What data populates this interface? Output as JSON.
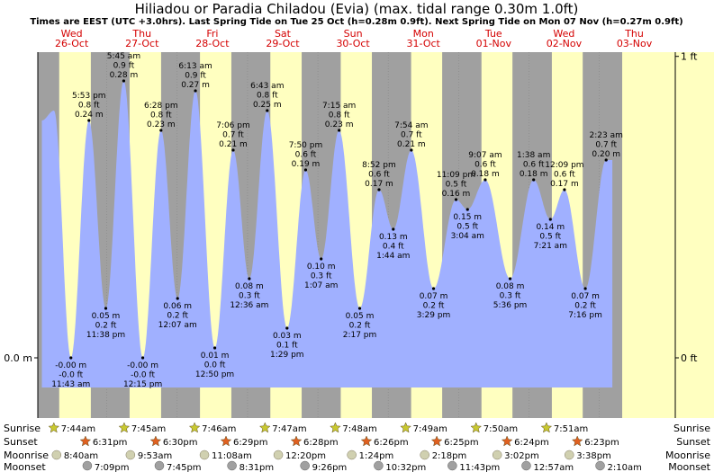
{
  "header": {
    "title": "Hiliadou or Paradia Chiladou (Evia) (max. tidal range 0.30m 1.0ft)",
    "subtitle": "Times are EEST (UTC +3.0hrs). Last Spring Tide on Tue 25 Oct (h=0.28m 0.9ft). Next Spring Tide on Mon 07 Nov (h=0.27m 0.9ft)"
  },
  "colors": {
    "night": "#a0a0a0",
    "day": "#ffffc0",
    "tide": "#a0b0ff",
    "sun": "#c8c830",
    "sunset": "#e06020",
    "moon": "#d0d0b0",
    "moonset": "#a0a0a0",
    "day_label": "#d40000"
  },
  "chart_data": {
    "type": "area",
    "x_unit": "hours since 26-Oct 00:00 EEST",
    "y_unit": "m",
    "ylim": [
      -0.033,
      0.3
    ],
    "x_range_hours": [
      0,
      204
    ],
    "left_axis": [
      {
        "label": "0.0 m",
        "value": 0
      }
    ],
    "right_axis": [
      {
        "label": "1 ft",
        "value": 0.3048
      },
      {
        "label": "0 ft",
        "value": 0
      }
    ],
    "days": [
      {
        "name": "Wed",
        "date": "26-Oct"
      },
      {
        "name": "Thu",
        "date": "27-Oct"
      },
      {
        "name": "Fri",
        "date": "28-Oct"
      },
      {
        "name": "Sat",
        "date": "29-Oct"
      },
      {
        "name": "Sun",
        "date": "30-Oct"
      },
      {
        "name": "Mon",
        "date": "31-Oct"
      },
      {
        "name": "Tue",
        "date": "01-Nov"
      },
      {
        "name": "Wed",
        "date": "02-Nov"
      },
      {
        "name": "Thu",
        "date": "03-Nov"
      }
    ],
    "tides": [
      {
        "hour": 5.97,
        "height": 0.25,
        "type": "high",
        "label": ""
      },
      {
        "hour": 11.72,
        "height": 0.0,
        "type": "low",
        "label": [
          "-0.00 m",
          "-0.0 ft",
          "11:43 am"
        ]
      },
      {
        "hour": 17.88,
        "height": 0.24,
        "type": "high",
        "label": [
          "5:53 pm",
          "0.8 ft",
          "0.24 m"
        ]
      },
      {
        "hour": 23.63,
        "height": 0.05,
        "type": "low",
        "label": [
          "0.05 m",
          "0.2 ft",
          "11:38 pm"
        ]
      },
      {
        "hour": 29.75,
        "height": 0.28,
        "type": "high",
        "label": [
          "5:45 am",
          "0.9 ft",
          "0.28 m"
        ]
      },
      {
        "hour": 36.25,
        "height": 0.0,
        "type": "low",
        "label": [
          "-0.00 m",
          "-0.0 ft",
          "12:15 pm"
        ]
      },
      {
        "hour": 42.47,
        "height": 0.23,
        "type": "high",
        "label": [
          "6:28 pm",
          "0.8 ft",
          "0.23 m"
        ]
      },
      {
        "hour": 48.12,
        "height": 0.06,
        "type": "low",
        "label": [
          "0.06 m",
          "0.2 ft",
          "12:07 am"
        ]
      },
      {
        "hour": 54.22,
        "height": 0.27,
        "type": "high",
        "label": [
          "6:13 am",
          "0.9 ft",
          "0.27 m"
        ]
      },
      {
        "hour": 60.83,
        "height": 0.01,
        "type": "low",
        "label": [
          "0.01 m",
          "0.0 ft",
          "12:50 pm"
        ]
      },
      {
        "hour": 67.1,
        "height": 0.21,
        "type": "high",
        "label": [
          "7:06 pm",
          "0.7 ft",
          "0.21 m"
        ]
      },
      {
        "hour": 72.6,
        "height": 0.08,
        "type": "low",
        "label": [
          "0.08 m",
          "0.3 ft",
          "12:36 am"
        ]
      },
      {
        "hour": 78.72,
        "height": 0.25,
        "type": "high",
        "label": [
          "6:43 am",
          "0.8 ft",
          "0.25 m"
        ]
      },
      {
        "hour": 85.48,
        "height": 0.03,
        "type": "low",
        "label": [
          "0.03 m",
          "0.1 ft",
          "1:29 pm"
        ]
      },
      {
        "hour": 91.83,
        "height": 0.19,
        "type": "high",
        "label": [
          "7:50 pm",
          "0.6 ft",
          "0.19 m"
        ]
      },
      {
        "hour": 97.12,
        "height": 0.1,
        "type": "low",
        "label": [
          "0.10 m",
          "0.3 ft",
          "1:07 am"
        ]
      },
      {
        "hour": 103.25,
        "height": 0.23,
        "type": "high",
        "label": [
          "7:15 am",
          "0.8 ft",
          "0.23 m"
        ]
      },
      {
        "hour": 110.28,
        "height": 0.05,
        "type": "low",
        "label": [
          "0.05 m",
          "0.2 ft",
          "2:17 pm"
        ]
      },
      {
        "hour": 116.87,
        "height": 0.17,
        "type": "high",
        "label": [
          "8:52 pm",
          "0.6 ft",
          "0.17 m"
        ]
      },
      {
        "hour": 121.73,
        "height": 0.13,
        "type": "low",
        "label": [
          "0.13 m",
          "0.4 ft",
          "1:44 am"
        ]
      },
      {
        "hour": 127.9,
        "height": 0.21,
        "type": "high",
        "label": [
          "7:54 am",
          "0.7 ft",
          "0.21 m"
        ]
      },
      {
        "hour": 135.48,
        "height": 0.07,
        "type": "low",
        "label": [
          "0.07 m",
          "0.2 ft",
          "3:29 pm"
        ]
      },
      {
        "hour": 143.15,
        "height": 0.16,
        "type": "high",
        "label": [
          "11:09 pm",
          "0.5 ft",
          "0.16 m"
        ]
      },
      {
        "hour": 147.07,
        "height": 0.15,
        "type": "low",
        "label": [
          "0.15 m",
          "0.5 ft",
          "3:04 am"
        ]
      },
      {
        "hour": 153.12,
        "height": 0.18,
        "type": "high",
        "label": [
          "9:07 am",
          "0.6 ft",
          "0.18 m"
        ]
      },
      {
        "hour": 161.6,
        "height": 0.08,
        "type": "low",
        "label": [
          "0.08 m",
          "0.3 ft",
          "5:36 pm"
        ]
      },
      {
        "hour": 169.63,
        "height": 0.18,
        "type": "high",
        "label": [
          "1:38 am",
          "0.6 ft",
          "0.18 m"
        ]
      },
      {
        "hour": 175.35,
        "height": 0.14,
        "type": "low",
        "label": [
          "0.14 m",
          "0.5 ft",
          "7:21 am"
        ]
      },
      {
        "hour": 180.15,
        "height": 0.17,
        "type": "high",
        "label": [
          "12:09 pm",
          "0.6 ft",
          "0.17 m"
        ]
      },
      {
        "hour": 187.27,
        "height": 0.07,
        "type": "low",
        "label": [
          "0.07 m",
          "0.2 ft",
          "7:16 pm"
        ]
      },
      {
        "hour": 194.38,
        "height": 0.2,
        "type": "high",
        "label": [
          "2:23 am",
          "0.7 ft",
          "0.20 m"
        ]
      }
    ],
    "curve_end_hour": 196.5,
    "curve_end_height": 0.2,
    "astro_labels": [
      "Sunrise",
      "Sunset",
      "Moonrise",
      "Moonset"
    ],
    "sunrise": [
      {
        "hour": 7.73,
        "label": "7:44am"
      },
      {
        "hour": 31.75,
        "label": "7:45am"
      },
      {
        "hour": 55.77,
        "label": "7:46am"
      },
      {
        "hour": 79.78,
        "label": "7:47am"
      },
      {
        "hour": 103.8,
        "label": "7:48am"
      },
      {
        "hour": 127.82,
        "label": "7:49am"
      },
      {
        "hour": 151.83,
        "label": "7:50am"
      },
      {
        "hour": 175.85,
        "label": "7:51am"
      }
    ],
    "sunset": [
      {
        "hour": 18.52,
        "label": "6:31pm"
      },
      {
        "hour": 42.5,
        "label": "6:30pm"
      },
      {
        "hour": 66.48,
        "label": "6:29pm"
      },
      {
        "hour": 90.47,
        "label": "6:28pm"
      },
      {
        "hour": 114.43,
        "label": "6:26pm"
      },
      {
        "hour": 138.42,
        "label": "6:25pm"
      },
      {
        "hour": 162.4,
        "label": "6:24pm"
      },
      {
        "hour": 186.38,
        "label": "6:23pm"
      }
    ],
    "moonrise": [
      {
        "hour": 8.67,
        "label": "8:40am"
      },
      {
        "hour": 33.88,
        "label": "9:53am"
      },
      {
        "hour": 59.13,
        "label": "11:08am"
      },
      {
        "hour": 84.33,
        "label": "12:20pm"
      },
      {
        "hour": 109.4,
        "label": "1:24pm"
      },
      {
        "hour": 134.3,
        "label": "2:18pm"
      },
      {
        "hour": 159.03,
        "label": "3:02pm"
      },
      {
        "hour": 183.63,
        "label": "3:38pm"
      }
    ],
    "moonset": [
      {
        "hour": 19.15,
        "label": "7:09pm"
      },
      {
        "hour": 43.75,
        "label": "7:45pm"
      },
      {
        "hour": 68.52,
        "label": "8:31pm"
      },
      {
        "hour": 93.43,
        "label": "9:26pm"
      },
      {
        "hour": 118.53,
        "label": "10:32pm"
      },
      {
        "hour": 143.72,
        "label": "11:43pm"
      },
      {
        "hour": 168.95,
        "label": "12:57am"
      },
      {
        "hour": 194.17,
        "label": "2:10am"
      }
    ]
  }
}
